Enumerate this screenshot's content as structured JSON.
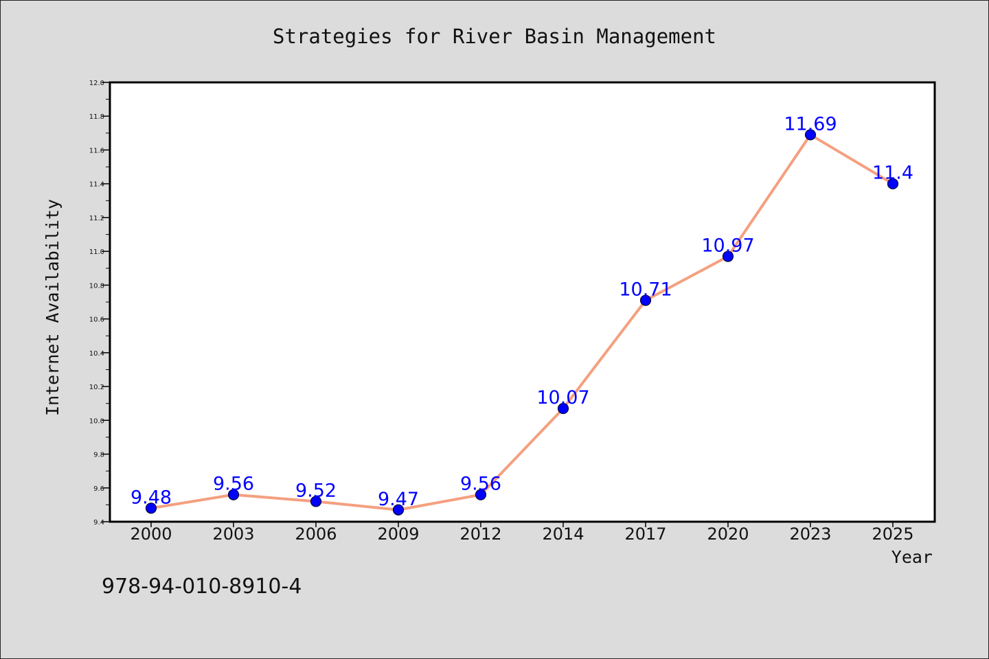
{
  "footer_code": "978-94-010-8910-4",
  "chart_data": {
    "type": "line",
    "title": "Strategies for River Basin Management",
    "xlabel": "Year",
    "ylabel": "Internet Availability",
    "categories": [
      "2000",
      "2003",
      "2006",
      "2009",
      "2012",
      "2014",
      "2017",
      "2020",
      "2023",
      "2025"
    ],
    "values": [
      9.48,
      9.56,
      9.52,
      9.47,
      9.56,
      10.07,
      10.71,
      10.97,
      11.69,
      11.4
    ],
    "data_labels": [
      "9.48",
      "9.56",
      "9.52",
      "9.47",
      "9.56",
      "10.07",
      "10.71",
      "10.97",
      "11.69",
      "11.4"
    ],
    "ylim": [
      9.4,
      12.0
    ],
    "yticks": [
      "9.4",
      "9.6",
      "9.8",
      "10.0",
      "10.2",
      "10.4",
      "10.6",
      "10.8",
      "11.0",
      "11.2",
      "11.4",
      "11.6",
      "11.8",
      "12.0"
    ],
    "grid": false,
    "legend": "none",
    "colors": {
      "line": "#f4a07f",
      "marker": "#0000ff",
      "marker_edge": "#000033",
      "label": "#0000ff",
      "background": "#dcdcdc",
      "plot_background": "#ffffff"
    }
  }
}
